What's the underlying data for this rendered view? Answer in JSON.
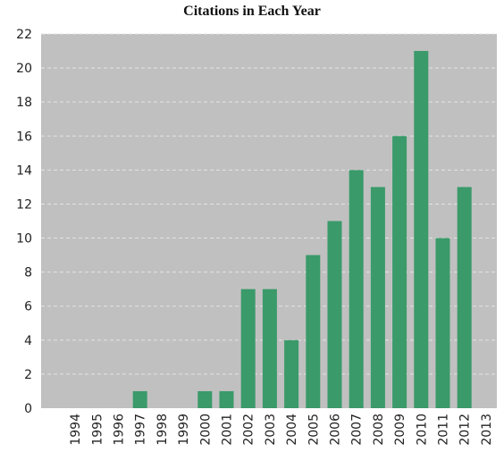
{
  "chart_data": {
    "type": "bar",
    "title": "Citations in Each Year",
    "xlabel": "",
    "ylabel": "",
    "categories": [
      "1994",
      "1995",
      "1996",
      "1997",
      "1998",
      "1999",
      "2000",
      "2001",
      "2002",
      "2003",
      "2004",
      "2005",
      "2006",
      "2007",
      "2008",
      "2009",
      "2010",
      "2011",
      "2012",
      "2013"
    ],
    "values": [
      0,
      0,
      0,
      1,
      0,
      0,
      1,
      1,
      7,
      7,
      4,
      9,
      11,
      14,
      13,
      16,
      21,
      10,
      13,
      0
    ],
    "ylim": [
      0,
      22
    ],
    "yticks": [
      "0",
      "2",
      "4",
      "6",
      "8",
      "10",
      "12",
      "14",
      "16",
      "18",
      "20",
      "22"
    ],
    "grid": true,
    "colors": {
      "bar": "#3a9a6a",
      "plot_background": "#c0c0c0",
      "gridline": "#e4e4e4"
    }
  }
}
